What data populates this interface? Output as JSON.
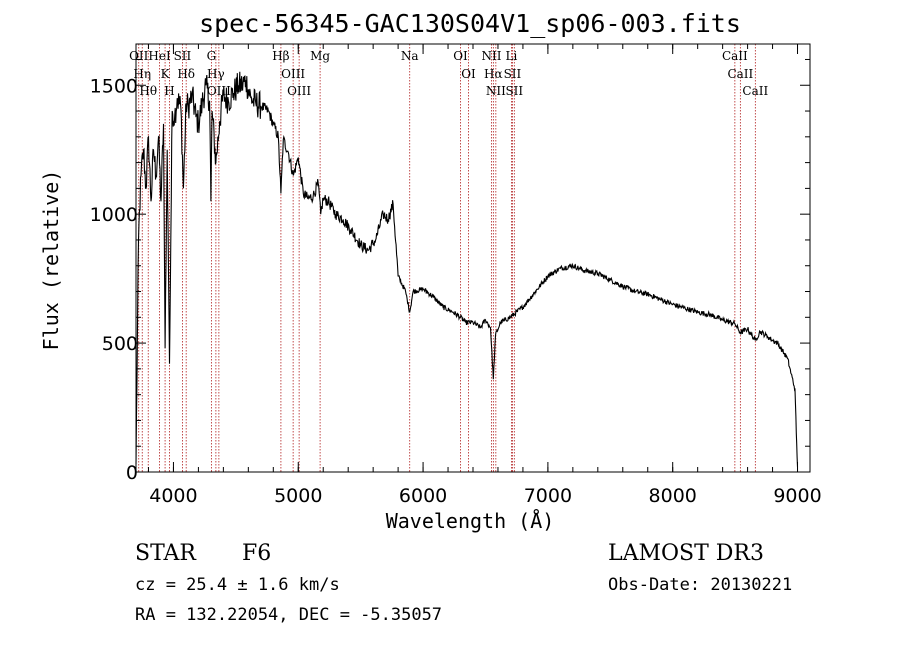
{
  "chart_data": {
    "type": "line",
    "title": "spec-56345-GAC130S04V1_sp06-003.fits",
    "xlabel": "Wavelength (Å)",
    "ylabel": "Flux (relative)",
    "xlim": [
      3700,
      9100
    ],
    "ylim": [
      0,
      1660
    ],
    "xticks": [
      4000,
      5000,
      6000,
      7000,
      8000,
      9000
    ],
    "xtick_labels": [
      "4000",
      "5000",
      "6000",
      "7000",
      "8000",
      "9000"
    ],
    "yticks": [
      0,
      500,
      1000,
      1500
    ],
    "ytick_labels": [
      "0",
      "500",
      "1000",
      "1500"
    ],
    "grid": false,
    "series": [
      {
        "name": "spectrum",
        "color": "#000000",
        "x": [
          3700,
          3720,
          3740,
          3760,
          3780,
          3800,
          3820,
          3840,
          3860,
          3880,
          3900,
          3920,
          3933,
          3950,
          3968,
          3990,
          4010,
          4030,
          4060,
          4080,
          4102,
          4120,
          4150,
          4180,
          4200,
          4230,
          4260,
          4290,
          4300,
          4310,
          4340,
          4370,
          4400,
          4440,
          4480,
          4520,
          4550,
          4580,
          4620,
          4660,
          4700,
          4760,
          4800,
          4840,
          4861,
          4880,
          4920,
          4960,
          5000,
          5040,
          5080,
          5120,
          5160,
          5180,
          5200,
          5240,
          5300,
          5360,
          5420,
          5500,
          5560,
          5620,
          5680,
          5720,
          5760,
          5800,
          5860,
          5893,
          5920,
          6000,
          6080,
          6160,
          6240,
          6300,
          6340,
          6400,
          6460,
          6500,
          6540,
          6563,
          6580,
          6620,
          6700,
          6800,
          6900,
          7000,
          7100,
          7200,
          7300,
          7400,
          7500,
          7600,
          7700,
          7800,
          7900,
          8000,
          8100,
          8200,
          8300,
          8400,
          8498,
          8542,
          8600,
          8662,
          8700,
          8760,
          8800,
          8840,
          8880,
          8920,
          8950,
          8980,
          8990,
          9000
        ],
        "values": [
          30,
          900,
          1150,
          1250,
          1100,
          1300,
          1050,
          1250,
          1150,
          1300,
          1050,
          1350,
          480,
          1250,
          420,
          1400,
          1380,
          1450,
          1410,
          1100,
          1430,
          1420,
          1460,
          1380,
          1350,
          1430,
          1500,
          1440,
          1050,
          1400,
          1200,
          1360,
          1460,
          1440,
          1470,
          1500,
          1500,
          1520,
          1450,
          1430,
          1420,
          1400,
          1350,
          1300,
          1080,
          1290,
          1240,
          1150,
          1220,
          1080,
          1060,
          1070,
          1120,
          1000,
          1060,
          1050,
          1000,
          980,
          940,
          880,
          860,
          900,
          1000,
          980,
          1040,
          760,
          700,
          620,
          700,
          710,
          680,
          640,
          620,
          600,
          580,
          580,
          560,
          590,
          560,
          360,
          530,
          580,
          600,
          640,
          700,
          760,
          790,
          800,
          780,
          770,
          745,
          720,
          700,
          690,
          670,
          650,
          635,
          620,
          610,
          590,
          575,
          540,
          555,
          510,
          545,
          525,
          510,
          500,
          470,
          440,
          380,
          320,
          150,
          20
        ]
      }
    ],
    "line_markers": [
      {
        "wavelength": 3722,
        "label": "OII"
      },
      {
        "wavelength": 3750,
        "label": "Hη"
      },
      {
        "wavelength": 3798,
        "label": "Hθ"
      },
      {
        "wavelength": 3889,
        "label": "HeI"
      },
      {
        "wavelength": 3933,
        "label": "K"
      },
      {
        "wavelength": 3968,
        "label": "H"
      },
      {
        "wavelength": 4072,
        "label": "SII"
      },
      {
        "wavelength": 4102,
        "label": "Hδ"
      },
      {
        "wavelength": 4304,
        "label": "G"
      },
      {
        "wavelength": 4340,
        "label": "Hγ"
      },
      {
        "wavelength": 4364,
        "label": "OIII"
      },
      {
        "wavelength": 4861,
        "label": "Hβ"
      },
      {
        "wavelength": 4959,
        "label": "OIII"
      },
      {
        "wavelength": 5007,
        "label": "OIII"
      },
      {
        "wavelength": 5175,
        "label": "Mg"
      },
      {
        "wavelength": 5893,
        "label": "Na"
      },
      {
        "wavelength": 6300,
        "label": "OI"
      },
      {
        "wavelength": 6364,
        "label": "OI"
      },
      {
        "wavelength": 6548,
        "label": "NII"
      },
      {
        "wavelength": 6563,
        "label": "Hα"
      },
      {
        "wavelength": 6583,
        "label": "NII"
      },
      {
        "wavelength": 6708,
        "label": "Li"
      },
      {
        "wavelength": 6716,
        "label": "SII"
      },
      {
        "wavelength": 6731,
        "label": "SII"
      },
      {
        "wavelength": 8498,
        "label": "CaII"
      },
      {
        "wavelength": 8542,
        "label": "CaII"
      },
      {
        "wavelength": 8662,
        "label": "CaII"
      }
    ],
    "marker_color": "#b22222"
  },
  "info": {
    "object_class": "STAR",
    "subclass": "F6",
    "survey": "LAMOST DR3",
    "redshift_text": "cz = 25.4 ± 1.6 km/s",
    "obs_date": "Obs-Date: 20130221",
    "coords": "RA = 132.22054, DEC =  -5.35057"
  }
}
